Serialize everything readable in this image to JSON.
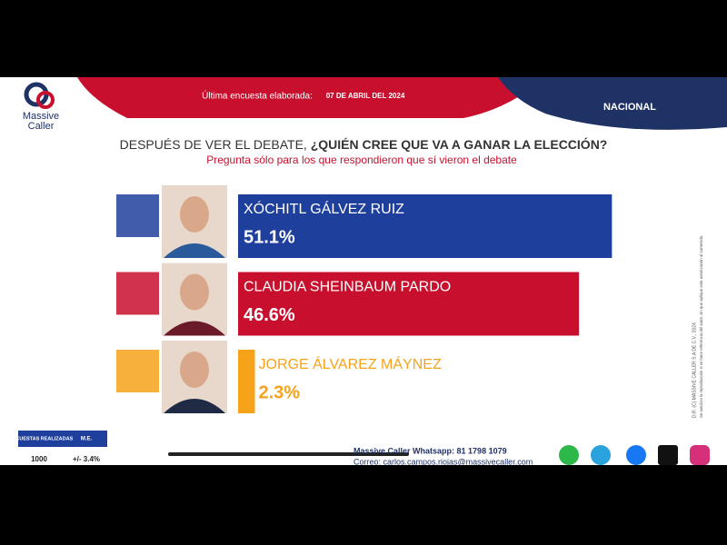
{
  "brand": {
    "name": "Massive",
    "name2": "Caller"
  },
  "header": {
    "label": "Última encuesta elaborada:",
    "date": "07 DE ABRIL DEL 2024",
    "scope": "NACIONAL"
  },
  "chart_data": {
    "type": "bar",
    "title_lead": "DESPUÉS DE VER EL DEBATE,",
    "title": "¿QUIÉN CREE QUE VA A GANAR LA ELECCIÓN?",
    "subtitle": "Pregunta sólo para los que respondieron  que sí vieron el debate",
    "categories": [
      "XÓCHITL GÁLVEZ RUIZ",
      "CLAUDIA SHEINBAUM PARDO",
      "JORGE ÁLVAREZ MÁYNEZ"
    ],
    "values": [
      51.1,
      46.6,
      2.3
    ],
    "value_labels": [
      "51.1%",
      "46.6%",
      "2.3%"
    ],
    "colors": [
      "#1f3f9c",
      "#c8102e",
      "#f7a21b"
    ]
  },
  "method_table": {
    "headers": [
      "ENCUESTAS REALIZADAS",
      "M.E."
    ],
    "row": [
      "1000",
      "+/- 3.4%"
    ]
  },
  "footer": {
    "whatsapp": "Massive Caller Whatsapp: 81 1798 1079",
    "email": "Correo: carlos.campos.riojas@massivecaller.com"
  },
  "side_note": {
    "copyright": "D.R. (C) MASSIVE CALLER S.A DE C.V., 2024",
    "license": "Se autoriza la reproducción si se hace referencia del autor, sin que aplique esta autorización al contenido."
  }
}
